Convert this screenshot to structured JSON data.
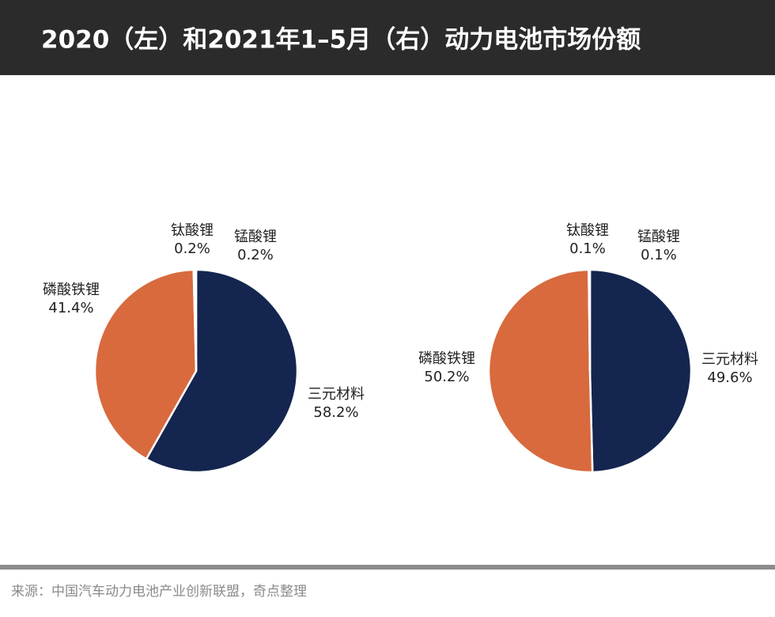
{
  "title": "2020（左）和2021年1–5月（右）动力电池市场份额",
  "source": "来源：中国汽车动力电池产业创新联盟，奇点整理",
  "chart_data": [
    {
      "type": "pie",
      "categories": [
        "三元材料",
        "磷酸铁锂",
        "钛酸锂",
        "锰酸锂"
      ],
      "values": [
        58.2,
        41.4,
        0.2,
        0.2
      ],
      "value_labels": [
        "58.2%",
        "41.4%",
        "0.2%",
        "0.2%"
      ],
      "colors": [
        "#14254f",
        "#d86a3e",
        "#a5a5a5",
        "#ffc000"
      ]
    },
    {
      "type": "pie",
      "categories": [
        "三元材料",
        "磷酸铁锂",
        "钛酸锂",
        "锰酸锂"
      ],
      "values": [
        49.6,
        50.2,
        0.1,
        0.1
      ],
      "value_labels": [
        "49.6%",
        "50.2%",
        "0.1%",
        "0.1%"
      ],
      "colors": [
        "#14254f",
        "#d86a3e",
        "#a5a5a5",
        "#ffc000"
      ]
    }
  ]
}
